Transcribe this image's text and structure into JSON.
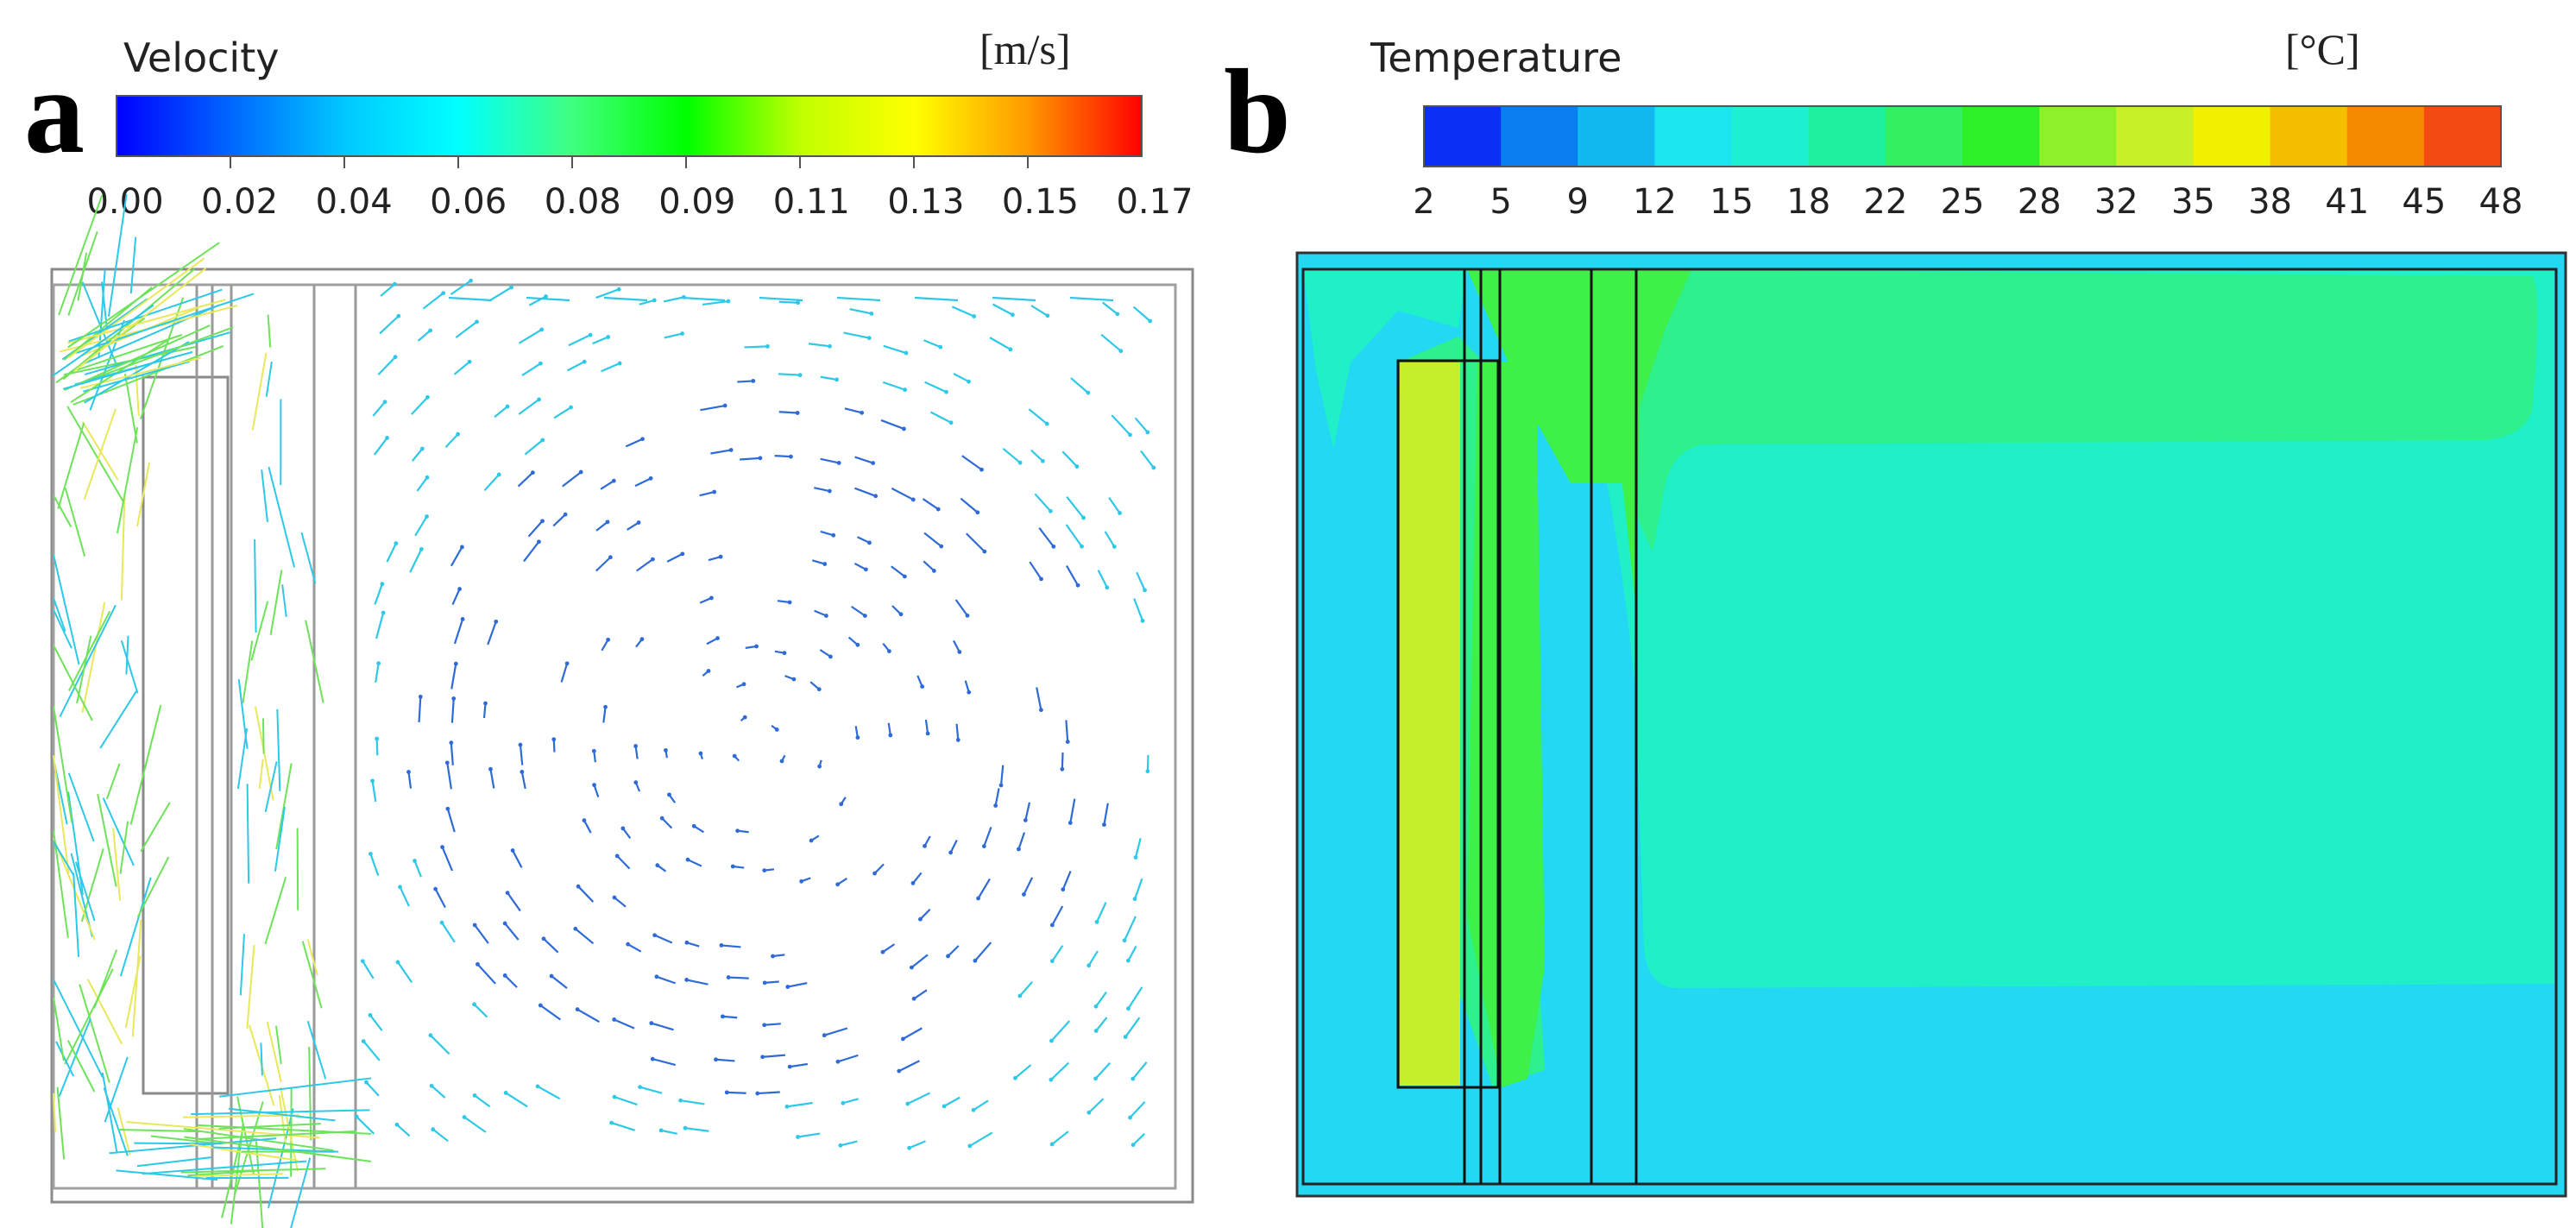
{
  "panel_a": {
    "letter": "a",
    "colorbar": {
      "title": "Velocity",
      "unit": "[m/s]",
      "ticks": [
        "0.00",
        "0.02",
        "0.04",
        "0.06",
        "0.08",
        "0.09",
        "0.11",
        "0.13",
        "0.15",
        "0.17"
      ],
      "gradient_colors": [
        "#0000ff",
        "#0066ff",
        "#00c8ff",
        "#00ffff",
        "#40ff80",
        "#00ff00",
        "#c0ff00",
        "#ffff00",
        "#ff9900",
        "#ff0000"
      ]
    },
    "arrow_colors": {
      "low": "#2e6bd6",
      "mid": "#2ec8e8",
      "high": "#6ee35a",
      "max": "#e8e85a"
    }
  },
  "panel_b": {
    "letter": "b",
    "colorbar": {
      "title": "Temperature",
      "unit": "[°C]",
      "ticks": [
        "2",
        "5",
        "9",
        "12",
        "15",
        "18",
        "22",
        "25",
        "28",
        "32",
        "35",
        "38",
        "41",
        "45",
        "48"
      ],
      "bands": [
        "#0a2ff5",
        "#0a7df0",
        "#12b8f0",
        "#1be6f0",
        "#1ef0d2",
        "#1ef0a0",
        "#32f060",
        "#2ef028",
        "#8ef028",
        "#c8f028",
        "#f0f000",
        "#f5be00",
        "#f58a00",
        "#f54a14"
      ]
    },
    "field_colors": {
      "cold": "#22d8f2",
      "mid": "#20f0c8",
      "warm": "#2ef08c",
      "hot": "#3ff048",
      "plate": "#c4ef2a"
    }
  }
}
